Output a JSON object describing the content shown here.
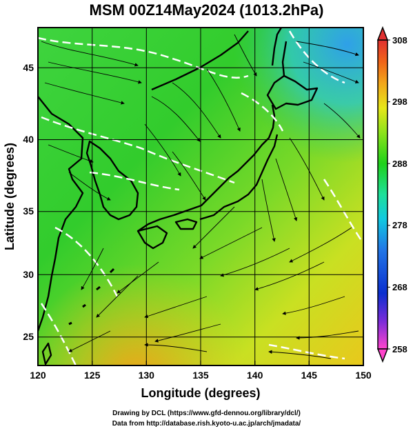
{
  "title": "MSM 00Z14May2024 (1013.2hPa)",
  "map": {
    "xlabel": "Longitude (degrees)",
    "ylabel": "Latitude  (degrees)",
    "xlim": [
      120,
      150
    ],
    "ylim": [
      22.5,
      48
    ],
    "x_ticks": [
      "120",
      "125",
      "130",
      "135",
      "140",
      "145",
      "150"
    ],
    "y_ticks": [
      "25",
      "30",
      "35",
      "40",
      "45"
    ]
  },
  "colorbar": {
    "range": [
      258,
      308
    ],
    "ticks": [
      "308",
      "298",
      "288",
      "278",
      "268",
      "258"
    ],
    "colors": [
      "#ff44cc",
      "#7a2cd9",
      "#0b2fcf",
      "#2276e6",
      "#11c8e0",
      "#1ee09a",
      "#1fd11a",
      "#8de31b",
      "#e6e61a",
      "#f2a61a",
      "#f06418",
      "#e03030"
    ]
  },
  "credits": {
    "line1": "Drawing by DCL (https://www.gfd-dennou.org/library/dcl/)",
    "line2": "Data from http://database.rish.kyoto-u.ac.jp/arch/jmadata/"
  }
}
